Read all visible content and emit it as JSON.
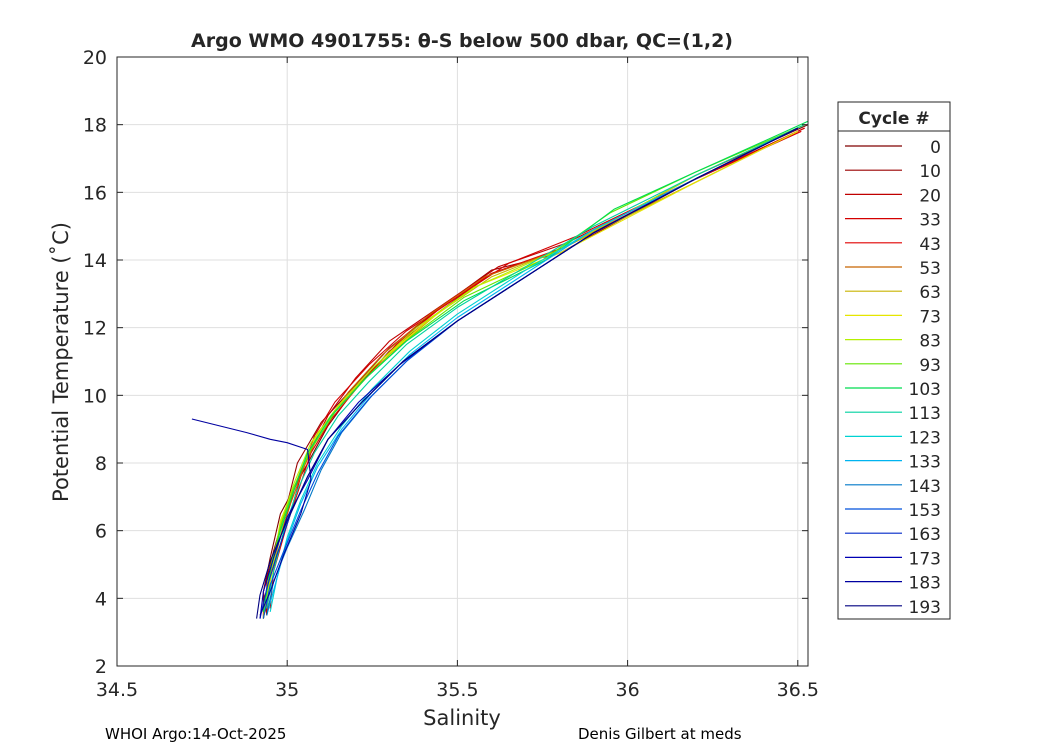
{
  "chart_data": {
    "type": "line",
    "title": "Argo WMO 4901755: θ-S below 500 dbar,  QC=(1,2)",
    "xlabel": "Salinity",
    "ylabel": "Potential Temperature (˚C)",
    "xlim": [
      34.5,
      36.53
    ],
    "ylim": [
      2,
      20
    ],
    "xticks": [
      34.5,
      35,
      35.5,
      36,
      36.5
    ],
    "xtick_labels": [
      "34.5",
      "35",
      "35.5",
      "36",
      "36.5"
    ],
    "yticks": [
      2,
      4,
      6,
      8,
      10,
      12,
      14,
      16,
      18,
      20
    ],
    "ytick_labels": [
      "2",
      "4",
      "6",
      "8",
      "10",
      "12",
      "14",
      "16",
      "18",
      "20"
    ],
    "grid": true,
    "legend_title": "Cycle #",
    "legend_position": "outside-right",
    "colormap": "jet",
    "series": [
      {
        "name": "0",
        "color": "#800000",
        "points": [
          [
            36.53,
            18.0
          ],
          [
            36.2,
            16.5
          ],
          [
            35.8,
            14.3
          ],
          [
            35.6,
            13.6
          ],
          [
            35.45,
            12.5
          ],
          [
            35.3,
            11.3
          ],
          [
            35.2,
            10.2
          ],
          [
            35.12,
            9.1
          ],
          [
            35.05,
            7.8
          ],
          [
            34.98,
            6.5
          ],
          [
            34.95,
            5.2
          ],
          [
            34.93,
            4.2
          ],
          [
            34.93,
            3.4
          ]
        ]
      },
      {
        "name": "10",
        "color": "#9a0000",
        "points": [
          [
            36.52,
            17.9
          ],
          [
            36.2,
            16.4
          ],
          [
            35.8,
            14.2
          ],
          [
            35.6,
            13.7
          ],
          [
            35.45,
            12.6
          ],
          [
            35.3,
            11.4
          ],
          [
            35.2,
            10.3
          ],
          [
            35.1,
            9.2
          ],
          [
            35.03,
            8.0
          ],
          [
            35.0,
            6.8
          ],
          [
            34.96,
            5.4
          ],
          [
            34.93,
            4.2
          ],
          [
            34.94,
            3.5
          ]
        ]
      },
      {
        "name": "20",
        "color": "#c00000",
        "points": [
          [
            36.51,
            17.8
          ],
          [
            36.18,
            16.3
          ],
          [
            35.82,
            14.5
          ],
          [
            35.62,
            13.8
          ],
          [
            35.46,
            12.7
          ],
          [
            35.3,
            11.6
          ],
          [
            35.2,
            10.5
          ],
          [
            35.12,
            9.4
          ],
          [
            35.07,
            8.4
          ],
          [
            35.02,
            7.2
          ],
          [
            34.98,
            5.8
          ],
          [
            34.94,
            4.5
          ],
          [
            34.94,
            3.6
          ]
        ]
      },
      {
        "name": "33",
        "color": "#d40000",
        "points": [
          [
            36.52,
            17.9
          ],
          [
            36.2,
            16.4
          ],
          [
            35.85,
            14.7
          ],
          [
            35.65,
            13.9
          ],
          [
            35.5,
            12.9
          ],
          [
            35.35,
            11.9
          ],
          [
            35.24,
            10.9
          ],
          [
            35.14,
            9.8
          ],
          [
            35.08,
            8.8
          ],
          [
            35.04,
            7.6
          ],
          [
            35.0,
            6.2
          ],
          [
            34.96,
            4.8
          ],
          [
            34.95,
            3.7
          ]
        ]
      },
      {
        "name": "43",
        "color": "#e00000",
        "points": [
          [
            36.51,
            17.8
          ],
          [
            36.2,
            16.4
          ],
          [
            35.82,
            14.4
          ],
          [
            35.6,
            13.6
          ],
          [
            35.44,
            12.5
          ],
          [
            35.32,
            11.5
          ],
          [
            35.22,
            10.4
          ],
          [
            35.13,
            9.3
          ],
          [
            35.07,
            8.3
          ],
          [
            35.03,
            7.1
          ],
          [
            34.99,
            5.9
          ],
          [
            34.95,
            4.6
          ],
          [
            34.94,
            3.5
          ]
        ]
      },
      {
        "name": "53",
        "color": "#c86400",
        "points": [
          [
            36.5,
            17.8
          ],
          [
            36.18,
            16.2
          ],
          [
            35.8,
            14.3
          ],
          [
            35.58,
            13.5
          ],
          [
            35.42,
            12.4
          ],
          [
            35.28,
            11.2
          ],
          [
            35.18,
            10.1
          ],
          [
            35.1,
            9.0
          ],
          [
            35.05,
            7.9
          ],
          [
            35.01,
            6.8
          ],
          [
            34.97,
            5.5
          ],
          [
            34.94,
            4.3
          ],
          [
            34.93,
            3.5
          ]
        ]
      },
      {
        "name": "63",
        "color": "#c8b400",
        "points": [
          [
            36.5,
            17.8
          ],
          [
            36.2,
            16.3
          ],
          [
            35.8,
            14.3
          ],
          [
            35.6,
            13.5
          ],
          [
            35.44,
            12.4
          ],
          [
            35.3,
            11.2
          ],
          [
            35.18,
            10.0
          ],
          [
            35.09,
            8.9
          ],
          [
            35.04,
            7.8
          ],
          [
            35.0,
            6.7
          ],
          [
            34.97,
            5.4
          ],
          [
            34.94,
            4.2
          ],
          [
            34.93,
            3.4
          ]
        ]
      },
      {
        "name": "73",
        "color": "#e6e600",
        "points": [
          [
            36.5,
            17.8
          ],
          [
            36.2,
            16.3
          ],
          [
            35.8,
            14.2
          ],
          [
            35.55,
            13.2
          ],
          [
            35.4,
            12.1
          ],
          [
            35.26,
            10.9
          ],
          [
            35.16,
            9.8
          ],
          [
            35.08,
            8.7
          ],
          [
            35.03,
            7.5
          ],
          [
            34.98,
            6.3
          ],
          [
            34.96,
            5.1
          ],
          [
            34.94,
            4.0
          ],
          [
            34.93,
            3.4
          ]
        ]
      },
      {
        "name": "83",
        "color": "#b4f000",
        "points": [
          [
            36.52,
            18.0
          ],
          [
            36.2,
            16.5
          ],
          [
            35.8,
            14.3
          ],
          [
            35.55,
            13.2
          ],
          [
            35.38,
            12.0
          ],
          [
            35.25,
            10.8
          ],
          [
            35.15,
            9.7
          ],
          [
            35.07,
            8.6
          ],
          [
            35.02,
            7.4
          ],
          [
            34.98,
            6.2
          ],
          [
            34.96,
            5.0
          ],
          [
            34.94,
            4.0
          ],
          [
            34.93,
            3.4
          ]
        ]
      },
      {
        "name": "93",
        "color": "#64e600",
        "points": [
          [
            36.52,
            18.0
          ],
          [
            36.2,
            16.6
          ],
          [
            35.95,
            15.4
          ],
          [
            35.75,
            14.0
          ],
          [
            35.52,
            12.9
          ],
          [
            35.36,
            11.7
          ],
          [
            35.24,
            10.6
          ],
          [
            35.14,
            9.5
          ],
          [
            35.07,
            8.4
          ],
          [
            35.02,
            7.3
          ],
          [
            34.98,
            6.1
          ],
          [
            34.95,
            4.9
          ],
          [
            34.93,
            3.6
          ]
        ]
      },
      {
        "name": "103",
        "color": "#00dc50",
        "points": [
          [
            36.53,
            18.1
          ],
          [
            36.2,
            16.6
          ],
          [
            35.96,
            15.5
          ],
          [
            35.76,
            14.0
          ],
          [
            35.52,
            12.8
          ],
          [
            35.35,
            11.6
          ],
          [
            35.23,
            10.5
          ],
          [
            35.13,
            9.4
          ],
          [
            35.06,
            8.3
          ],
          [
            35.02,
            7.2
          ],
          [
            34.98,
            6.0
          ],
          [
            34.95,
            4.8
          ],
          [
            34.93,
            3.6
          ]
        ]
      },
      {
        "name": "113",
        "color": "#00d2a0",
        "points": [
          [
            36.52,
            18.0
          ],
          [
            36.2,
            16.5
          ],
          [
            35.9,
            15.0
          ],
          [
            35.7,
            13.8
          ],
          [
            35.5,
            12.6
          ],
          [
            35.35,
            11.5
          ],
          [
            35.24,
            10.4
          ],
          [
            35.15,
            9.4
          ],
          [
            35.08,
            8.3
          ],
          [
            35.03,
            7.2
          ],
          [
            34.99,
            6.0
          ],
          [
            34.96,
            4.8
          ],
          [
            34.94,
            3.7
          ]
        ]
      },
      {
        "name": "123",
        "color": "#00d2d2",
        "points": [
          [
            36.5,
            17.9
          ],
          [
            36.2,
            16.4
          ],
          [
            35.9,
            14.9
          ],
          [
            35.7,
            13.7
          ],
          [
            35.5,
            12.4
          ],
          [
            35.36,
            11.3
          ],
          [
            35.25,
            10.2
          ],
          [
            35.16,
            9.1
          ],
          [
            35.09,
            8.0
          ],
          [
            35.04,
            6.9
          ],
          [
            35.0,
            5.8
          ],
          [
            34.97,
            4.6
          ],
          [
            34.95,
            3.6
          ]
        ]
      },
      {
        "name": "133",
        "color": "#00b4f0",
        "points": [
          [
            36.5,
            17.9
          ],
          [
            36.2,
            16.4
          ],
          [
            35.9,
            14.9
          ],
          [
            35.7,
            13.6
          ],
          [
            35.5,
            12.3
          ],
          [
            35.36,
            11.2
          ],
          [
            35.25,
            10.1
          ],
          [
            35.16,
            9.0
          ],
          [
            35.09,
            7.9
          ],
          [
            35.04,
            6.8
          ],
          [
            35.0,
            5.7
          ],
          [
            34.97,
            4.6
          ],
          [
            34.94,
            3.5
          ]
        ]
      },
      {
        "name": "143",
        "color": "#0078c8",
        "points": [
          [
            36.5,
            17.9
          ],
          [
            36.2,
            16.4
          ],
          [
            35.9,
            14.8
          ],
          [
            35.7,
            13.5
          ],
          [
            35.5,
            12.2
          ],
          [
            35.36,
            11.1
          ],
          [
            35.25,
            10.0
          ],
          [
            35.16,
            8.9
          ],
          [
            35.1,
            7.8
          ],
          [
            35.05,
            6.6
          ],
          [
            35.0,
            5.5
          ],
          [
            34.96,
            4.5
          ],
          [
            34.94,
            3.5
          ]
        ]
      },
      {
        "name": "153",
        "color": "#0050dc",
        "points": [
          [
            36.5,
            17.9
          ],
          [
            36.2,
            16.4
          ],
          [
            35.9,
            14.8
          ],
          [
            35.7,
            13.5
          ],
          [
            35.5,
            12.2
          ],
          [
            35.35,
            11.0
          ],
          [
            35.24,
            9.9
          ],
          [
            35.15,
            8.8
          ],
          [
            35.09,
            7.7
          ],
          [
            35.04,
            6.6
          ],
          [
            34.99,
            5.4
          ],
          [
            34.95,
            4.4
          ],
          [
            34.93,
            3.4
          ]
        ]
      },
      {
        "name": "163",
        "color": "#0028c8",
        "points": [
          [
            36.5,
            17.9
          ],
          [
            36.2,
            16.4
          ],
          [
            35.9,
            14.8
          ],
          [
            35.7,
            13.5
          ],
          [
            35.5,
            12.2
          ],
          [
            35.34,
            11.0
          ],
          [
            35.22,
            9.8
          ],
          [
            35.12,
            8.7
          ],
          [
            35.06,
            7.6
          ],
          [
            35.01,
            6.5
          ],
          [
            34.97,
            5.3
          ],
          [
            34.94,
            4.3
          ],
          [
            34.92,
            3.4
          ]
        ]
      },
      {
        "name": "173",
        "color": "#0000b4",
        "points": [
          [
            36.5,
            17.9
          ],
          [
            36.2,
            16.4
          ],
          [
            35.9,
            14.8
          ],
          [
            35.7,
            13.5
          ],
          [
            35.5,
            12.2
          ],
          [
            35.33,
            10.9
          ],
          [
            35.21,
            9.8
          ],
          [
            35.12,
            8.7
          ],
          [
            35.06,
            7.5
          ],
          [
            35.0,
            6.4
          ],
          [
            34.96,
            5.2
          ],
          [
            34.93,
            4.2
          ],
          [
            34.92,
            3.4
          ]
        ]
      },
      {
        "name": "183",
        "color": "#0000a0",
        "points": [
          [
            34.72,
            9.3
          ],
          [
            34.88,
            8.9
          ],
          [
            34.95,
            8.7
          ],
          [
            35.0,
            8.6
          ],
          [
            35.06,
            8.4
          ],
          [
            35.07,
            7.5
          ],
          [
            35.04,
            6.5
          ],
          [
            34.99,
            5.3
          ],
          [
            34.95,
            4.2
          ],
          [
            34.92,
            3.5
          ]
        ]
      },
      {
        "name": "193",
        "color": "#000080",
        "points": [
          [
            36.5,
            17.9
          ],
          [
            36.2,
            16.4
          ],
          [
            35.9,
            14.8
          ],
          [
            35.7,
            13.5
          ],
          [
            35.5,
            12.2
          ],
          [
            35.34,
            11.0
          ],
          [
            35.22,
            9.8
          ],
          [
            35.12,
            8.7
          ],
          [
            35.06,
            7.6
          ],
          [
            35.0,
            6.3
          ],
          [
            34.95,
            5.1
          ],
          [
            34.92,
            4.1
          ],
          [
            34.91,
            3.4
          ]
        ]
      }
    ]
  },
  "footer": {
    "left": "WHOI Argo:14-Oct-2025",
    "right": "Denis Gilbert at meds"
  }
}
